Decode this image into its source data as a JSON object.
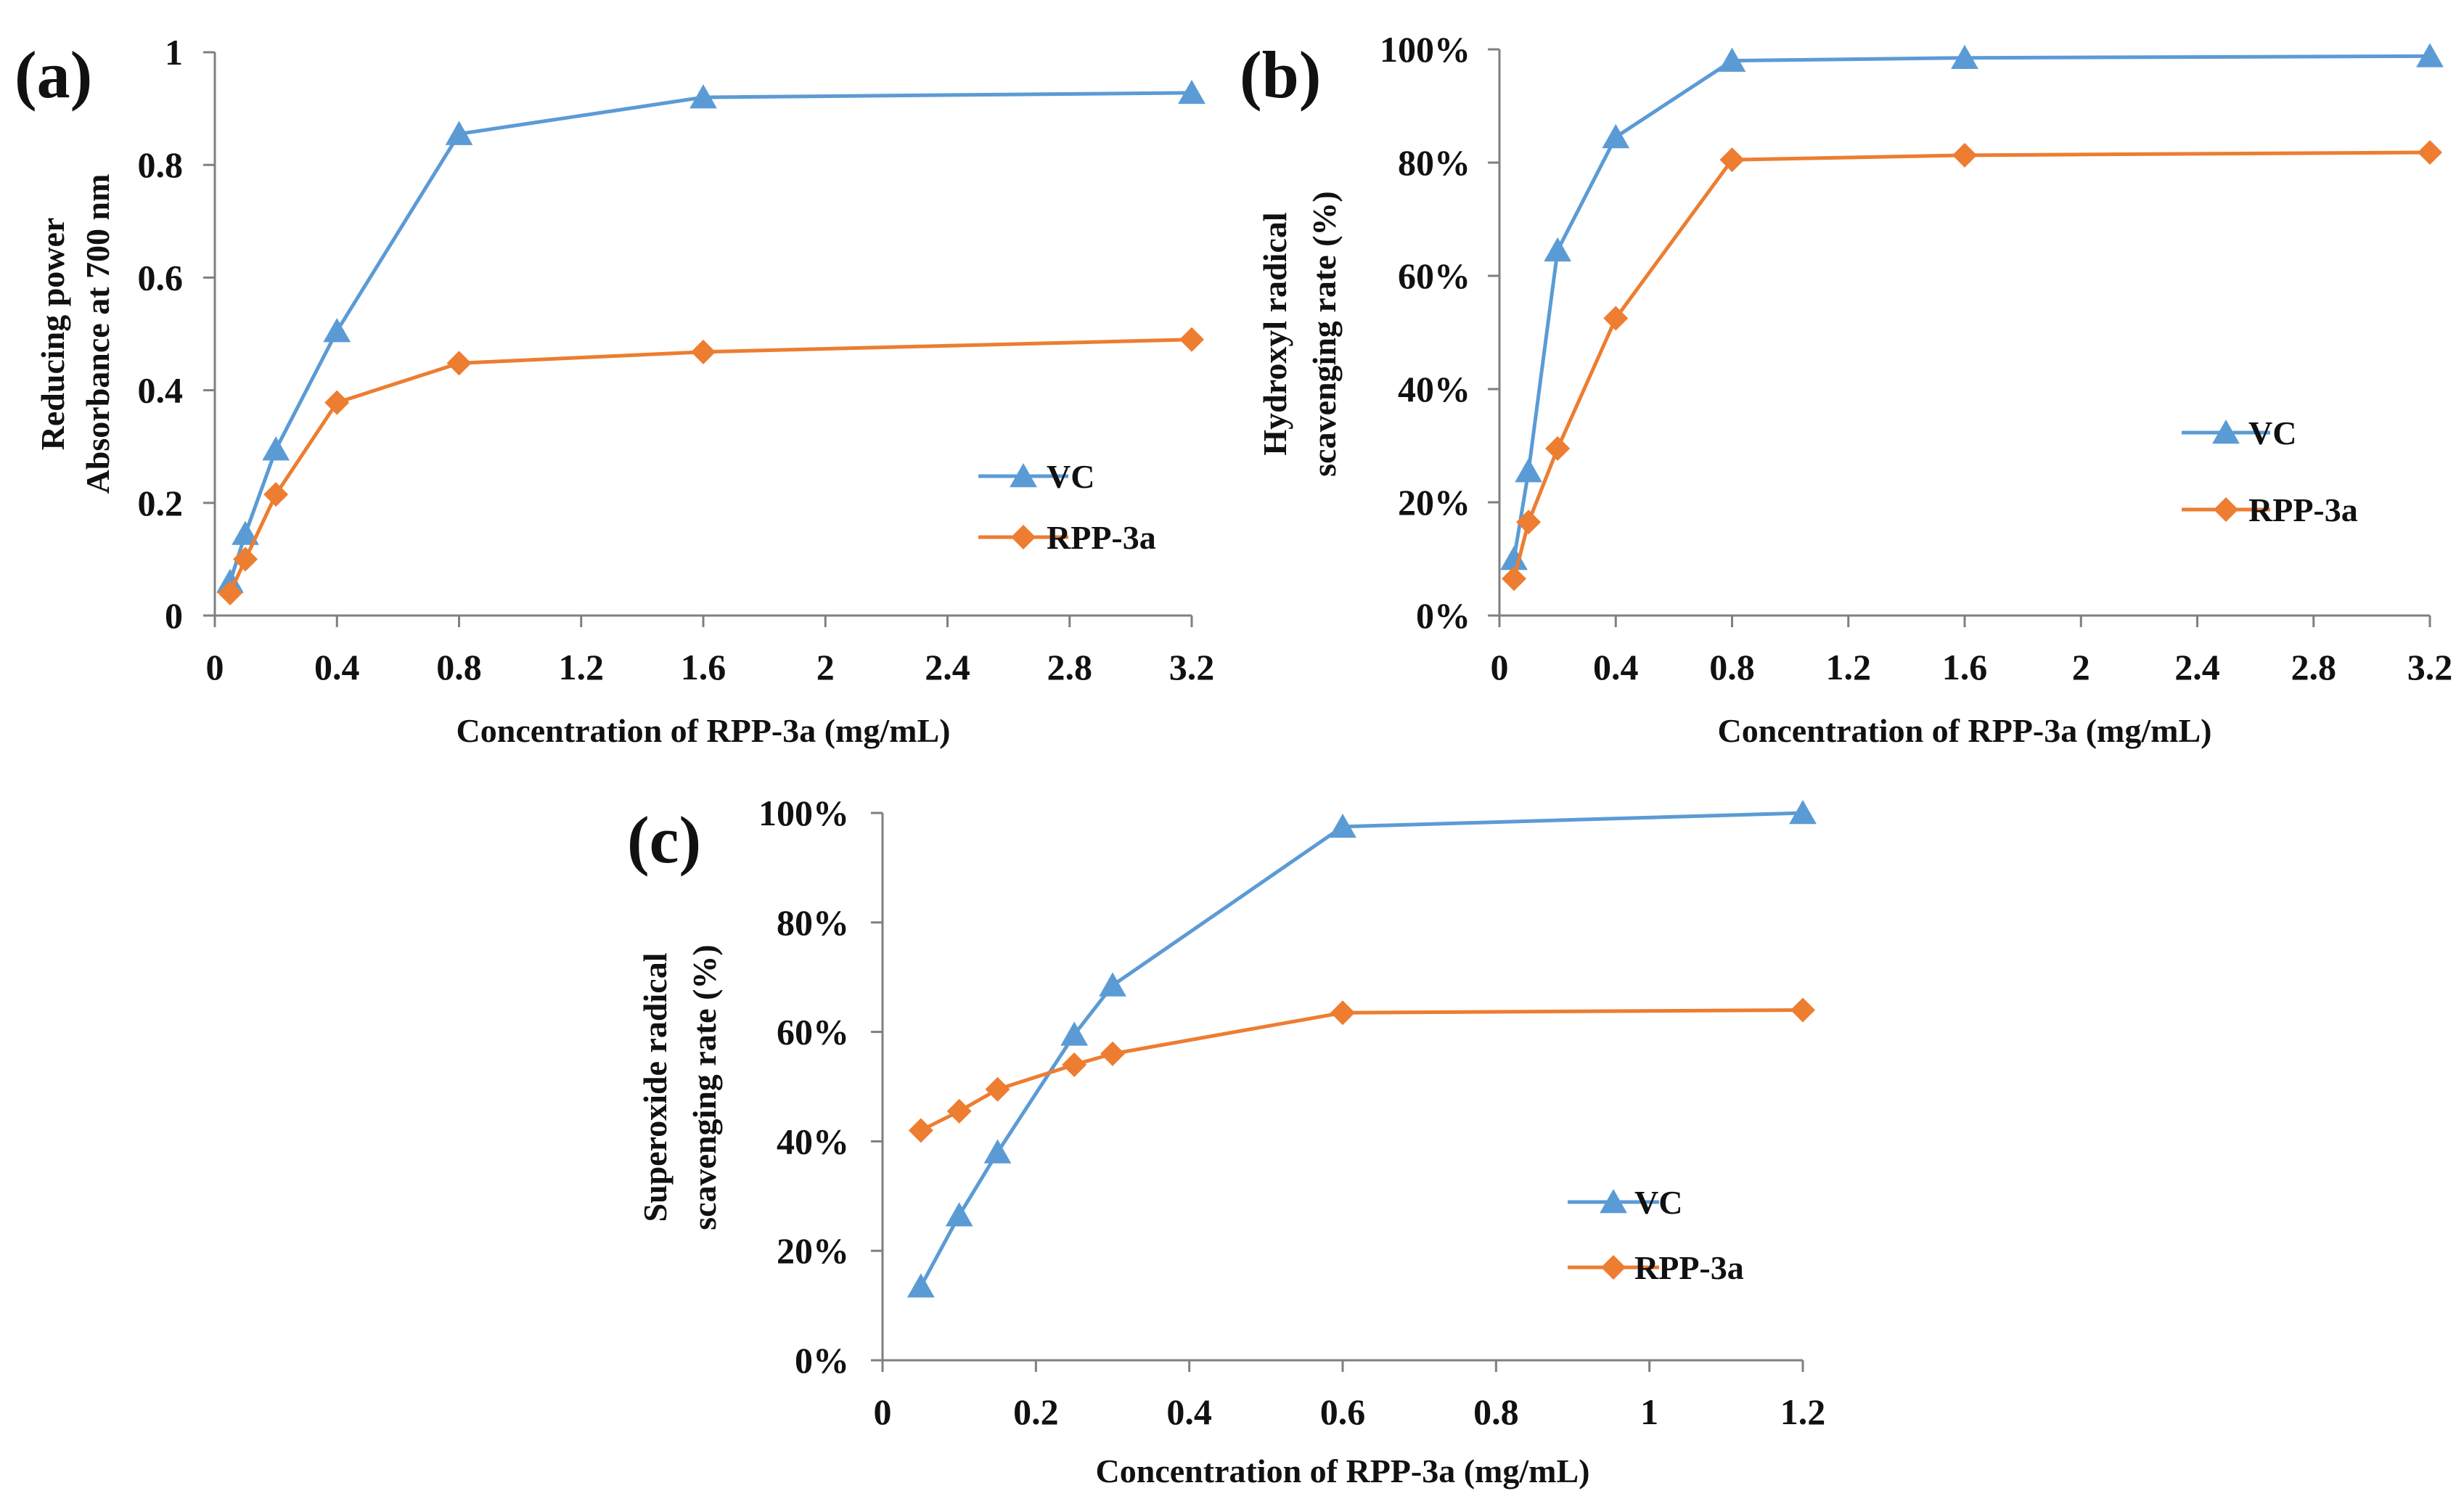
{
  "colors": {
    "vc": "#5b9bd5",
    "rpp": "#ed7d31",
    "axis": "#7f7f7f",
    "text": "#111111"
  },
  "chart_data": [
    {
      "type": "line",
      "panel_label": "(a)",
      "xlabel": "Concentration of RPP-3a (mg/mL)",
      "ylabel_lines": [
        "Reducing power",
        "Absorbance at 700 nm"
      ],
      "xlim": [
        0,
        3.2
      ],
      "ylim": [
        0,
        1
      ],
      "xticks": [
        "0",
        "0.4",
        "0.8",
        "1.2",
        "1.6",
        "2",
        "2.4",
        "2.8",
        "3.2"
      ],
      "yticks": [
        "0",
        "0.2",
        "0.4",
        "0.6",
        "0.8",
        "1"
      ],
      "legend_position": "center-right",
      "series": [
        {
          "name": "VC",
          "marker": "triangle",
          "x": [
            0.05,
            0.1,
            0.2,
            0.4,
            0.8,
            1.6,
            3.2
          ],
          "values": [
            0.06,
            0.145,
            0.295,
            0.505,
            0.855,
            0.92,
            0.928
          ]
        },
        {
          "name": "RPP-3a",
          "marker": "diamond",
          "x": [
            0.05,
            0.1,
            0.2,
            0.4,
            0.8,
            1.6,
            3.2
          ],
          "values": [
            0.04,
            0.1,
            0.215,
            0.378,
            0.448,
            0.468,
            0.49
          ]
        }
      ]
    },
    {
      "type": "line",
      "panel_label": "(b)",
      "xlabel": "Concentration of RPP-3a (mg/mL)",
      "ylabel_lines": [
        "Hydroxyl radical",
        "scavenging rate (%)"
      ],
      "xlim": [
        0,
        3.2
      ],
      "ylim": [
        0,
        100
      ],
      "xticks": [
        "0",
        "0.4",
        "0.8",
        "1.2",
        "1.6",
        "2",
        "2.4",
        "2.8",
        "3.2"
      ],
      "yticks": [
        "0%",
        "20%",
        "40%",
        "60%",
        "80%",
        "100%"
      ],
      "legend_position": "center-right",
      "series": [
        {
          "name": "VC",
          "marker": "triangle",
          "x": [
            0.05,
            0.1,
            0.2,
            0.4,
            0.8,
            1.6,
            3.2
          ],
          "values": [
            10,
            25.5,
            64.5,
            84.5,
            98,
            98.5,
            98.8
          ]
        },
        {
          "name": "RPP-3a",
          "marker": "diamond",
          "x": [
            0.05,
            0.1,
            0.2,
            0.4,
            0.8,
            1.6,
            3.2
          ],
          "values": [
            6.5,
            16.5,
            29.5,
            52.5,
            80.5,
            81.3,
            81.8
          ]
        }
      ]
    },
    {
      "type": "line",
      "panel_label": "(c)",
      "xlabel": "Concentration of RPP-3a (mg/mL)",
      "ylabel_lines": [
        "Superoxide radical",
        "scavenging rate (%)"
      ],
      "xlim": [
        0,
        1.2
      ],
      "ylim": [
        0,
        100
      ],
      "xticks": [
        "0",
        "0.2",
        "0.4",
        "0.6",
        "0.8",
        "1",
        "1.2"
      ],
      "yticks": [
        "0%",
        "20%",
        "40%",
        "60%",
        "80%",
        "100%"
      ],
      "legend_position": "bottom-right",
      "series": [
        {
          "name": "VC",
          "marker": "triangle",
          "x": [
            0.05,
            0.1,
            0.15,
            0.25,
            0.3,
            0.6,
            1.2
          ],
          "values": [
            13.5,
            26.5,
            38,
            59.5,
            68.5,
            97.5,
            100
          ]
        },
        {
          "name": "RPP-3a",
          "marker": "diamond",
          "x": [
            0.05,
            0.1,
            0.15,
            0.25,
            0.3,
            0.6,
            1.2
          ],
          "values": [
            42,
            45.5,
            49.5,
            54,
            56,
            63.5,
            64
          ]
        }
      ]
    }
  ]
}
